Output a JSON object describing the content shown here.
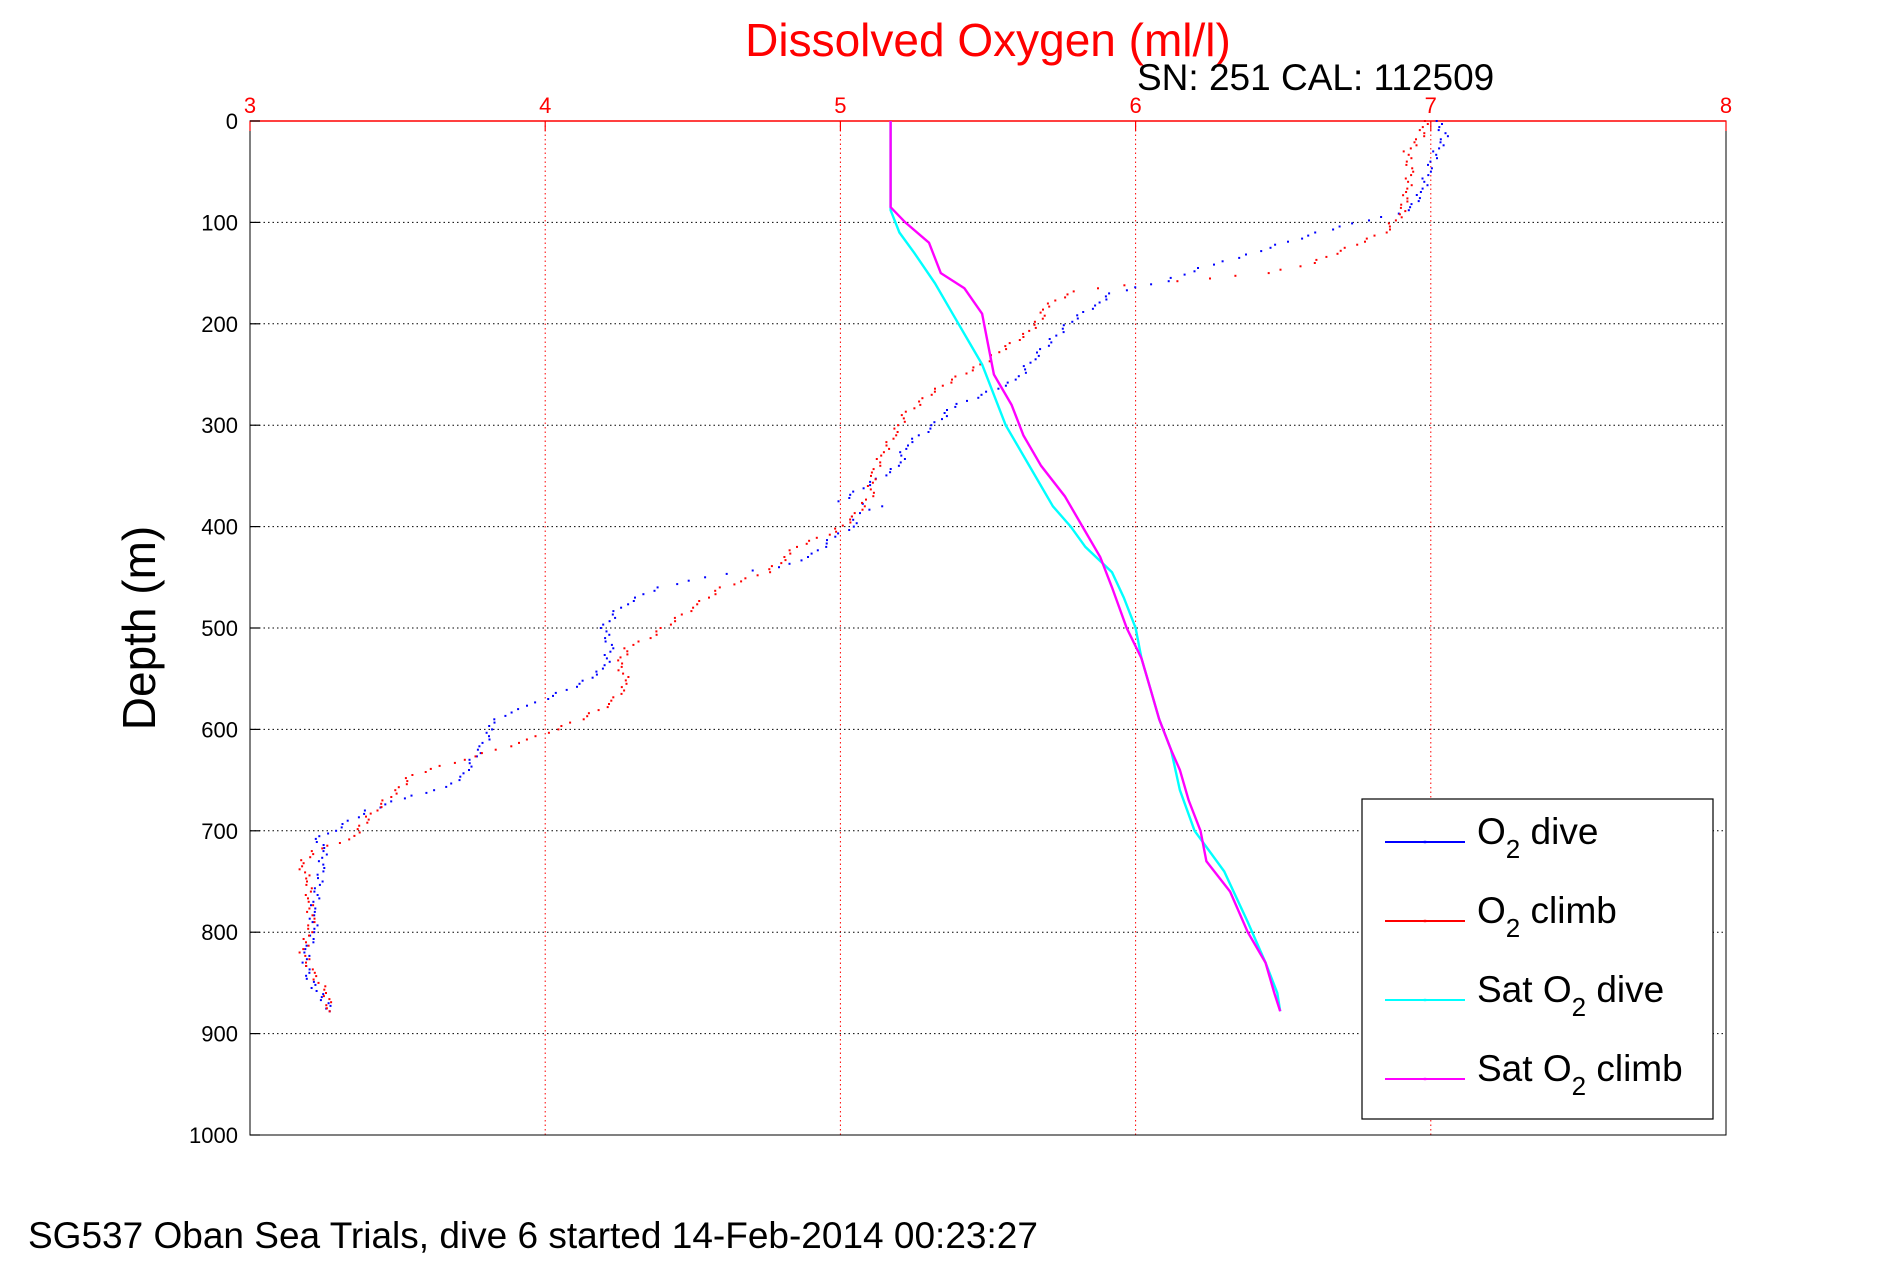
{
  "chart_data": {
    "type": "line",
    "title": "Dissolved Oxygen (ml/l)",
    "subtitle": "SN: 251  CAL: 112509",
    "ylabel": "Depth (m)",
    "caption": "SG537 Oban Sea Trials, dive 6 started 14-Feb-2014 00:23:27",
    "xlim": [
      3,
      8
    ],
    "ylim": [
      0,
      1000
    ],
    "y_reversed": true,
    "x_ticks": [
      "3",
      "4",
      "5",
      "6",
      "7",
      "8"
    ],
    "y_ticks": [
      "0",
      "100",
      "200",
      "300",
      "400",
      "500",
      "600",
      "700",
      "800",
      "900",
      "1000"
    ],
    "x_axis_position": "top",
    "grid": true,
    "legend_position": "bottom-right",
    "series": [
      {
        "name": "O2 dive",
        "legend_main": "O",
        "legend_sub": "2",
        "legend_rest": " dive",
        "color": "#0000ff",
        "style": "dots",
        "points": [
          [
            7.02,
            0
          ],
          [
            7.05,
            15
          ],
          [
            7.02,
            30
          ],
          [
            6.99,
            50
          ],
          [
            6.97,
            70
          ],
          [
            6.93,
            88
          ],
          [
            6.78,
            98
          ],
          [
            6.62,
            110
          ],
          [
            6.45,
            125
          ],
          [
            6.35,
            135
          ],
          [
            6.22,
            145
          ],
          [
            6.1,
            158
          ],
          [
            5.92,
            170
          ],
          [
            5.86,
            182
          ],
          [
            5.78,
            198
          ],
          [
            5.72,
            215
          ],
          [
            5.65,
            235
          ],
          [
            5.6,
            255
          ],
          [
            5.48,
            270
          ],
          [
            5.38,
            282
          ],
          [
            5.32,
            300
          ],
          [
            5.22,
            320
          ],
          [
            5.2,
            340
          ],
          [
            5.0,
            375
          ],
          [
            5.13,
            380
          ],
          [
            5.05,
            390
          ],
          [
            5.04,
            400
          ],
          [
            4.98,
            410
          ],
          [
            4.9,
            430
          ],
          [
            4.78,
            440
          ],
          [
            4.55,
            450
          ],
          [
            4.38,
            460
          ],
          [
            4.25,
            480
          ],
          [
            4.2,
            500
          ],
          [
            4.22,
            520
          ],
          [
            4.2,
            540
          ],
          [
            4.12,
            555
          ],
          [
            4.0,
            570
          ],
          [
            3.92,
            580
          ],
          [
            3.82,
            590
          ],
          [
            3.82,
            600
          ],
          [
            3.78,
            620
          ],
          [
            3.73,
            640
          ],
          [
            3.72,
            650
          ],
          [
            3.62,
            660
          ],
          [
            3.52,
            668
          ],
          [
            3.4,
            680
          ],
          [
            3.28,
            700
          ],
          [
            3.23,
            708
          ],
          [
            3.25,
            720
          ],
          [
            3.24,
            740
          ],
          [
            3.23,
            760
          ],
          [
            3.21,
            780
          ],
          [
            3.22,
            800
          ],
          [
            3.19,
            820
          ],
          [
            3.19,
            840
          ],
          [
            3.22,
            855
          ],
          [
            3.26,
            870
          ],
          [
            3.27,
            878
          ]
        ]
      },
      {
        "name": "O2 climb",
        "legend_main": "O",
        "legend_sub": "2",
        "legend_rest": " climb",
        "color": "#ff0000",
        "style": "dots",
        "points": [
          [
            6.98,
            0
          ],
          [
            6.97,
            15
          ],
          [
            6.92,
            30
          ],
          [
            6.93,
            50
          ],
          [
            6.92,
            70
          ],
          [
            6.9,
            92
          ],
          [
            6.84,
            110
          ],
          [
            6.72,
            125
          ],
          [
            6.6,
            140
          ],
          [
            6.45,
            150
          ],
          [
            6.15,
            158
          ],
          [
            5.95,
            162
          ],
          [
            5.8,
            168
          ],
          [
            5.7,
            180
          ],
          [
            5.68,
            195
          ],
          [
            5.63,
            210
          ],
          [
            5.55,
            225
          ],
          [
            5.48,
            240
          ],
          [
            5.38,
            255
          ],
          [
            5.3,
            270
          ],
          [
            5.22,
            290
          ],
          [
            5.18,
            310
          ],
          [
            5.14,
            330
          ],
          [
            5.11,
            350
          ],
          [
            5.1,
            370
          ],
          [
            5.05,
            390
          ],
          [
            4.98,
            405
          ],
          [
            4.85,
            420
          ],
          [
            4.82,
            430
          ],
          [
            4.75,
            445
          ],
          [
            4.6,
            460
          ],
          [
            4.5,
            480
          ],
          [
            4.35,
            510
          ],
          [
            4.28,
            520
          ],
          [
            4.25,
            535
          ],
          [
            4.28,
            555
          ],
          [
            4.22,
            575
          ],
          [
            4.12,
            590
          ],
          [
            3.95,
            610
          ],
          [
            3.72,
            630
          ],
          [
            3.55,
            645
          ],
          [
            3.5,
            660
          ],
          [
            3.42,
            680
          ],
          [
            3.38,
            695
          ],
          [
            3.35,
            705
          ],
          [
            3.3,
            712
          ],
          [
            3.22,
            720
          ],
          [
            3.17,
            732
          ],
          [
            3.2,
            750
          ],
          [
            3.2,
            770
          ],
          [
            3.21,
            790
          ],
          [
            3.18,
            820
          ],
          [
            3.21,
            840
          ],
          [
            3.26,
            860
          ],
          [
            3.27,
            878
          ]
        ]
      },
      {
        "name": "Sat O2 dive",
        "legend_main": "Sat O",
        "legend_sub": "2",
        "legend_rest": " dive",
        "color": "#00ffff",
        "style": "line",
        "points": [
          [
            5.17,
            0
          ],
          [
            5.17,
            30
          ],
          [
            5.17,
            60
          ],
          [
            5.17,
            88
          ],
          [
            5.2,
            110
          ],
          [
            5.25,
            130
          ],
          [
            5.32,
            160
          ],
          [
            5.38,
            190
          ],
          [
            5.44,
            220
          ],
          [
            5.48,
            240
          ],
          [
            5.52,
            270
          ],
          [
            5.56,
            300
          ],
          [
            5.62,
            330
          ],
          [
            5.66,
            350
          ],
          [
            5.72,
            380
          ],
          [
            5.78,
            400
          ],
          [
            5.83,
            420
          ],
          [
            5.92,
            445
          ],
          [
            5.96,
            470
          ],
          [
            6.0,
            500
          ],
          [
            6.02,
            530
          ],
          [
            6.05,
            560
          ],
          [
            6.08,
            590
          ],
          [
            6.12,
            620
          ],
          [
            6.15,
            660
          ],
          [
            6.2,
            700
          ],
          [
            6.3,
            740
          ],
          [
            6.38,
            790
          ],
          [
            6.44,
            830
          ],
          [
            6.48,
            860
          ],
          [
            6.49,
            878
          ]
        ]
      },
      {
        "name": "Sat O2 climb",
        "legend_main": "Sat O",
        "legend_sub": "2",
        "legend_rest": " climb",
        "color": "#ff00ff",
        "style": "line",
        "points": [
          [
            5.17,
            0
          ],
          [
            5.17,
            30
          ],
          [
            5.17,
            60
          ],
          [
            5.17,
            85
          ],
          [
            5.22,
            100
          ],
          [
            5.3,
            120
          ],
          [
            5.34,
            150
          ],
          [
            5.42,
            165
          ],
          [
            5.48,
            190
          ],
          [
            5.5,
            220
          ],
          [
            5.52,
            250
          ],
          [
            5.58,
            280
          ],
          [
            5.62,
            310
          ],
          [
            5.68,
            340
          ],
          [
            5.76,
            370
          ],
          [
            5.82,
            400
          ],
          [
            5.88,
            430
          ],
          [
            5.92,
            460
          ],
          [
            5.97,
            500
          ],
          [
            6.02,
            530
          ],
          [
            6.05,
            560
          ],
          [
            6.08,
            590
          ],
          [
            6.12,
            620
          ],
          [
            6.15,
            640
          ],
          [
            6.18,
            670
          ],
          [
            6.22,
            700
          ],
          [
            6.24,
            730
          ],
          [
            6.32,
            760
          ],
          [
            6.38,
            800
          ],
          [
            6.44,
            830
          ],
          [
            6.47,
            860
          ],
          [
            6.49,
            878
          ]
        ]
      }
    ]
  }
}
